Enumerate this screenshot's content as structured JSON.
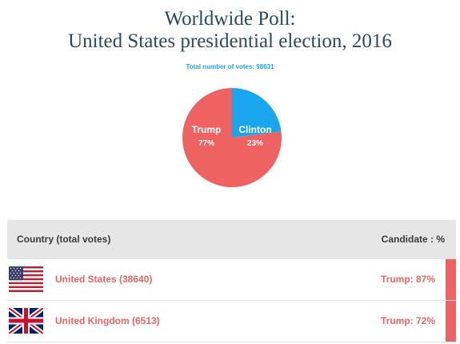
{
  "title": {
    "line1": "Worldwide Poll:",
    "line2": "United States presidential election, 2016"
  },
  "total_votes_text": "Total number of votes: 98631",
  "colors": {
    "trump": "#ef6262",
    "clinton": "#1aa6ee",
    "title": "#2a4a5e"
  },
  "pie": {
    "slices": [
      {
        "candidate": "Trump",
        "label": "Trump",
        "percent_label": "77%",
        "value": 77
      },
      {
        "candidate": "Clinton",
        "label": "Clinton",
        "percent_label": "23%",
        "value": 23
      }
    ]
  },
  "table": {
    "header_left": "Country (total votes)",
    "header_right": "Candidate : %",
    "rows": [
      {
        "flag": "us-flag",
        "country": "United States (38640)",
        "candidate_pct": "Trump: 87%",
        "winner": "Trump"
      },
      {
        "flag": "uk-flag",
        "country": "United Kingdom (6513)",
        "candidate_pct": "Trump: 72%",
        "winner": "Trump"
      }
    ]
  }
}
